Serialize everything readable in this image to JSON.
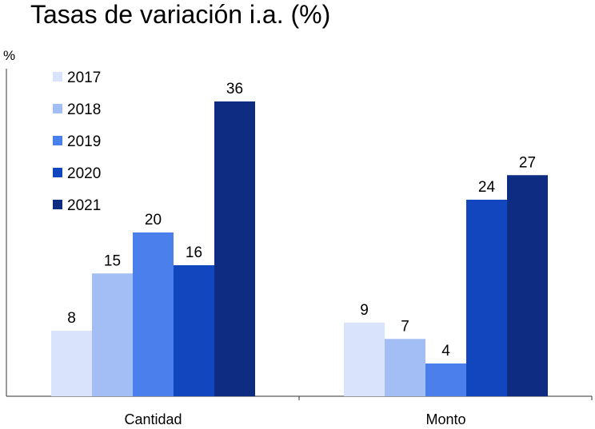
{
  "title": "Tasas de variación i.a. (%)",
  "chart_data": {
    "type": "bar",
    "title": "Tasas de variación i.a. (%)",
    "ylabel": "%",
    "xlabel": "",
    "categories": [
      "Cantidad",
      "Monto"
    ],
    "series": [
      {
        "name": "2017",
        "values": [
          8,
          9
        ],
        "color": "#d9e3fb"
      },
      {
        "name": "2018",
        "values": [
          15,
          7
        ],
        "color": "#a3bdf5"
      },
      {
        "name": "2019",
        "values": [
          20,
          4
        ],
        "color": "#4a7fec"
      },
      {
        "name": "2020",
        "values": [
          16,
          24
        ],
        "color": "#1246bf"
      },
      {
        "name": "2021",
        "values": [
          36,
          27
        ],
        "color": "#0e2d82"
      }
    ],
    "ylim": [
      0,
      40
    ],
    "grid": false,
    "legend_position": "top-left"
  }
}
